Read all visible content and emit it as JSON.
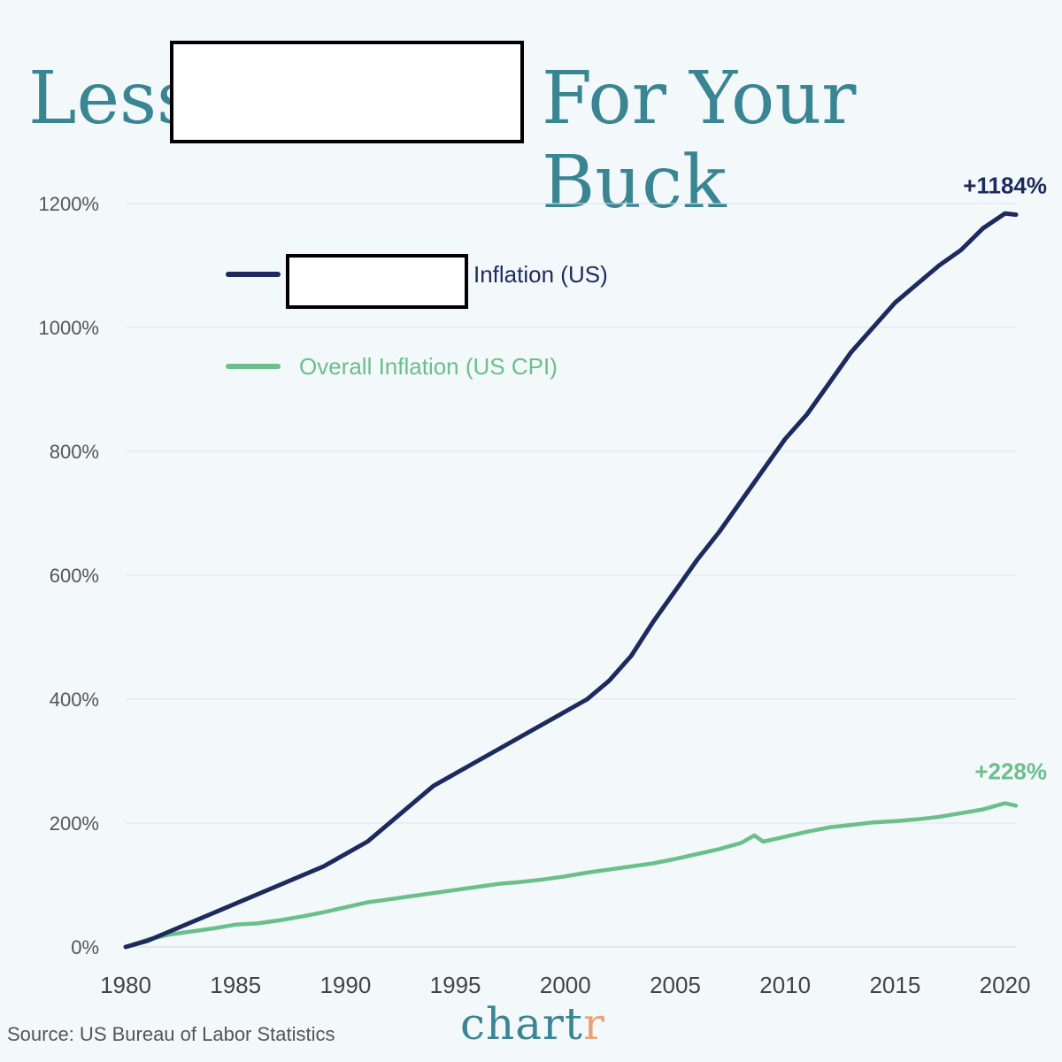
{
  "header": {
    "title_left": "Less",
    "title_right": "For Your Buck"
  },
  "chart_data": {
    "type": "line",
    "title": "Less [redacted] For Your Buck",
    "xlabel": "",
    "ylabel": "",
    "xlim": [
      1980,
      2020.5
    ],
    "ylim": [
      0,
      1200
    ],
    "x_ticks": [
      1980,
      1985,
      1990,
      1995,
      2000,
      2005,
      2010,
      2015,
      2020
    ],
    "x_tick_labels": [
      "1980",
      "1985",
      "1990",
      "1995",
      "2000",
      "2005",
      "2010",
      "2015",
      "2020"
    ],
    "y_ticks": [
      0,
      200,
      400,
      600,
      800,
      1000,
      1200
    ],
    "y_tick_labels": [
      "0%",
      "200%",
      "400%",
      "600%",
      "800%",
      "1000%",
      "1200%"
    ],
    "grid": true,
    "legend_position": "top-left",
    "series": [
      {
        "name": "Inflation (US)",
        "color": "#1c2a5e",
        "end_label": "+1184%",
        "x": [
          1980,
          1981,
          1982,
          1983,
          1984,
          1985,
          1986,
          1987,
          1988,
          1989,
          1990,
          1991,
          1992,
          1993,
          1994,
          1995,
          1996,
          1997,
          1998,
          1999,
          2000,
          2001,
          2002,
          2003,
          2004,
          2005,
          2006,
          2007,
          2008,
          2009,
          2010,
          2011,
          2012,
          2013,
          2014,
          2015,
          2016,
          2017,
          2018,
          2019,
          2020,
          2020.5
        ],
        "values": [
          0,
          10,
          25,
          40,
          55,
          70,
          85,
          100,
          115,
          130,
          150,
          170,
          200,
          230,
          260,
          280,
          300,
          320,
          340,
          360,
          380,
          400,
          430,
          470,
          525,
          575,
          625,
          670,
          720,
          770,
          820,
          860,
          910,
          960,
          1000,
          1040,
          1070,
          1100,
          1125,
          1160,
          1184,
          1182
        ]
      },
      {
        "name": "Overall Inflation (US CPI)",
        "color": "#6bbf8a",
        "end_label": "+228%",
        "x": [
          1980,
          1981,
          1982,
          1983,
          1984,
          1985,
          1986,
          1987,
          1988,
          1989,
          1990,
          1991,
          1992,
          1993,
          1994,
          1995,
          1996,
          1997,
          1998,
          1999,
          2000,
          2001,
          2002,
          2003,
          2004,
          2005,
          2006,
          2007,
          2008,
          2008.6,
          2009,
          2010,
          2011,
          2012,
          2013,
          2014,
          2015,
          2016,
          2017,
          2018,
          2019,
          2020,
          2020.5
        ],
        "values": [
          0,
          12,
          20,
          25,
          30,
          36,
          38,
          43,
          49,
          56,
          64,
          72,
          77,
          82,
          87,
          92,
          97,
          102,
          105,
          109,
          114,
          120,
          125,
          130,
          135,
          142,
          150,
          158,
          168,
          180,
          170,
          178,
          186,
          193,
          197,
          201,
          203,
          206,
          210,
          216,
          222,
          232,
          228
        ]
      }
    ]
  },
  "footer": {
    "source": "Source: US Bureau of Labor Statistics",
    "logo_main": "chart",
    "logo_accent": "r"
  }
}
